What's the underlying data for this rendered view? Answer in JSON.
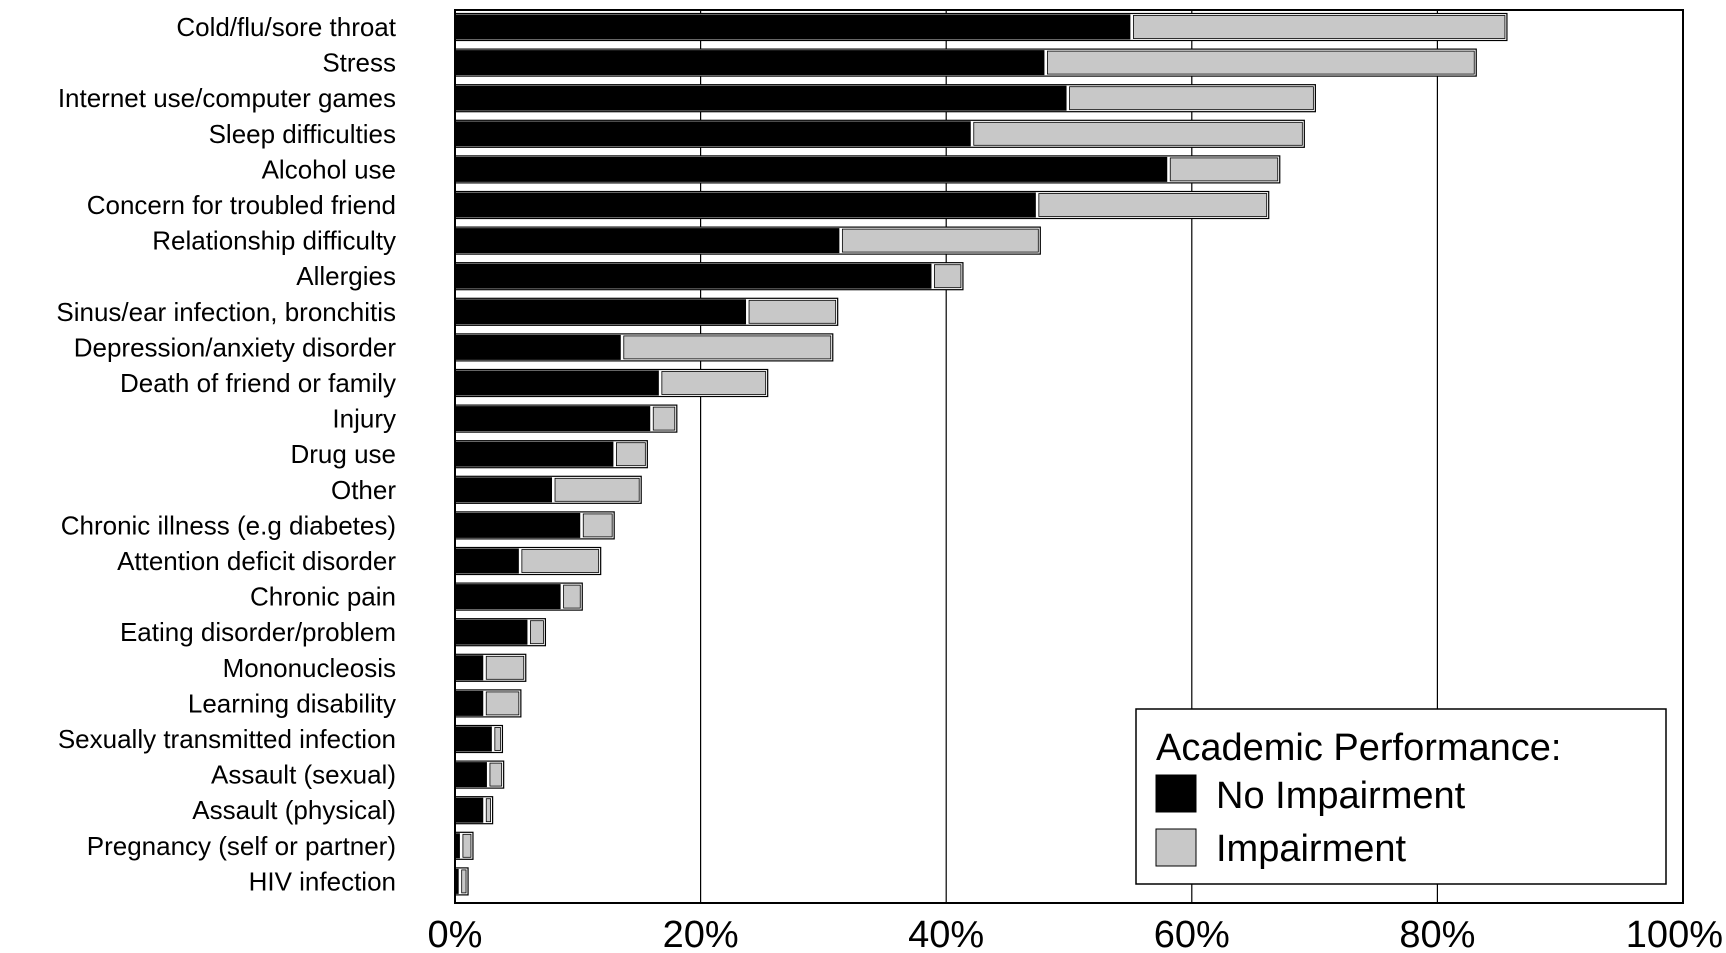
{
  "chart_data": {
    "type": "bar",
    "orientation": "horizontal",
    "stacked": true,
    "categories": [
      "Cold/flu/sore throat",
      "Stress",
      "Internet use/computer games",
      "Sleep difficulties",
      "Alcohol use",
      "Concern for troubled friend",
      "Relationship difficulty",
      "Allergies",
      "Sinus/ear infection, bronchitis",
      "Depression/anxiety disorder",
      "Death of friend or family",
      "Injury",
      "Drug use",
      "Other",
      "Chronic illness (e.g diabetes)",
      "Attention deficit disorder",
      "Chronic pain",
      "Eating disorder/problem",
      "Mononucleosis",
      "Learning disability",
      "Sexually transmitted infection",
      "Assault (sexual)",
      "Assault (physical)",
      "Pregnancy (self or partner)",
      "HIV infection"
    ],
    "series": [
      {
        "name": "No Impairment",
        "color": "#000000",
        "values": [
          55,
          48,
          49.8,
          42,
          58,
          47.3,
          31.3,
          38.8,
          23.7,
          13.5,
          16.6,
          15.9,
          12.9,
          7.9,
          10.2,
          5.2,
          8.6,
          5.9,
          2.3,
          2.3,
          3.0,
          2.6,
          2.3,
          0.4,
          0.3
        ]
      },
      {
        "name": "Impairment",
        "color": "#c8c8c8",
        "values": [
          30.5,
          35,
          20.1,
          27,
          9,
          18.8,
          16.2,
          2.4,
          7.3,
          17.1,
          8.7,
          2.0,
          2.6,
          7.1,
          2.6,
          6.5,
          1.6,
          1.3,
          3.3,
          2.9,
          0.7,
          1.2,
          0.6,
          0.9,
          0.6
        ]
      }
    ],
    "xlim": [
      0,
      100
    ],
    "xticks": [
      0,
      20,
      40,
      60,
      80,
      100
    ],
    "xtick_labels": [
      "0%",
      "20%",
      "40%",
      "60%",
      "80%",
      "100%"
    ],
    "grid": "vertical",
    "legend": {
      "title": "Academic Performance:",
      "placement": "bottom-right"
    }
  }
}
